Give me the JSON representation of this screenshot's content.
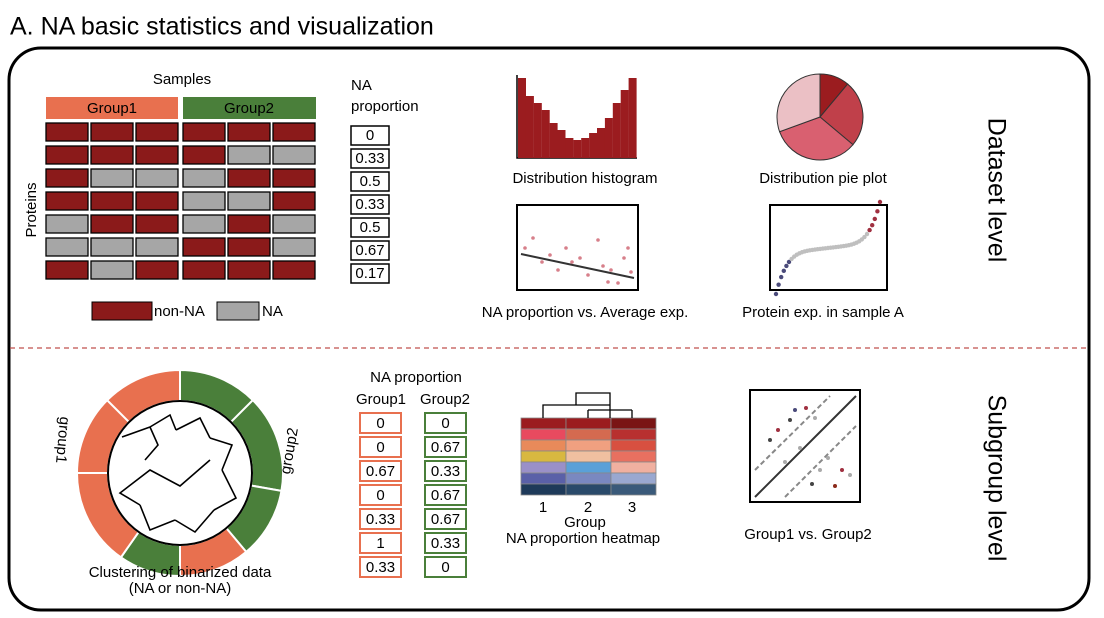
{
  "title": "A. NA basic statistics and visualization",
  "dataset": {
    "samples_label": "Samples",
    "group1": "Group1",
    "group2": "Group2",
    "proteins_label": "Proteins",
    "na_header": [
      "NA",
      "proportion"
    ],
    "na_values": [
      0,
      0.33,
      0.5,
      0.33,
      0.5,
      0.67,
      0.17
    ],
    "legend": {
      "non_na": "non-NA",
      "na": "NA"
    },
    "plots": [
      "Distribution histogram",
      "Distribution pie plot",
      "NA proportion vs. Average exp.",
      "Protein exp. in sample A"
    ],
    "level": "Dataset level"
  },
  "subgroup": {
    "group1_arc": "group1",
    "group2_arc": "group2",
    "clustering": [
      "Clustering of binarized data",
      "(NA or non-NA)"
    ],
    "na_header": "NA proportion",
    "group1": "Group1",
    "group2": "Group2",
    "group1_values": [
      0,
      0,
      0.67,
      0,
      0.33,
      1,
      0.33
    ],
    "group2_values": [
      0,
      0.67,
      0.33,
      0.67,
      0.67,
      0.33,
      0
    ],
    "heatmap_cols": [
      "1",
      "2",
      "3"
    ],
    "heatmap_axis": "Group",
    "heatmap_title": "NA proportion heatmap",
    "compare": "Group1 vs. Group2",
    "level": "Subgroup level"
  }
}
